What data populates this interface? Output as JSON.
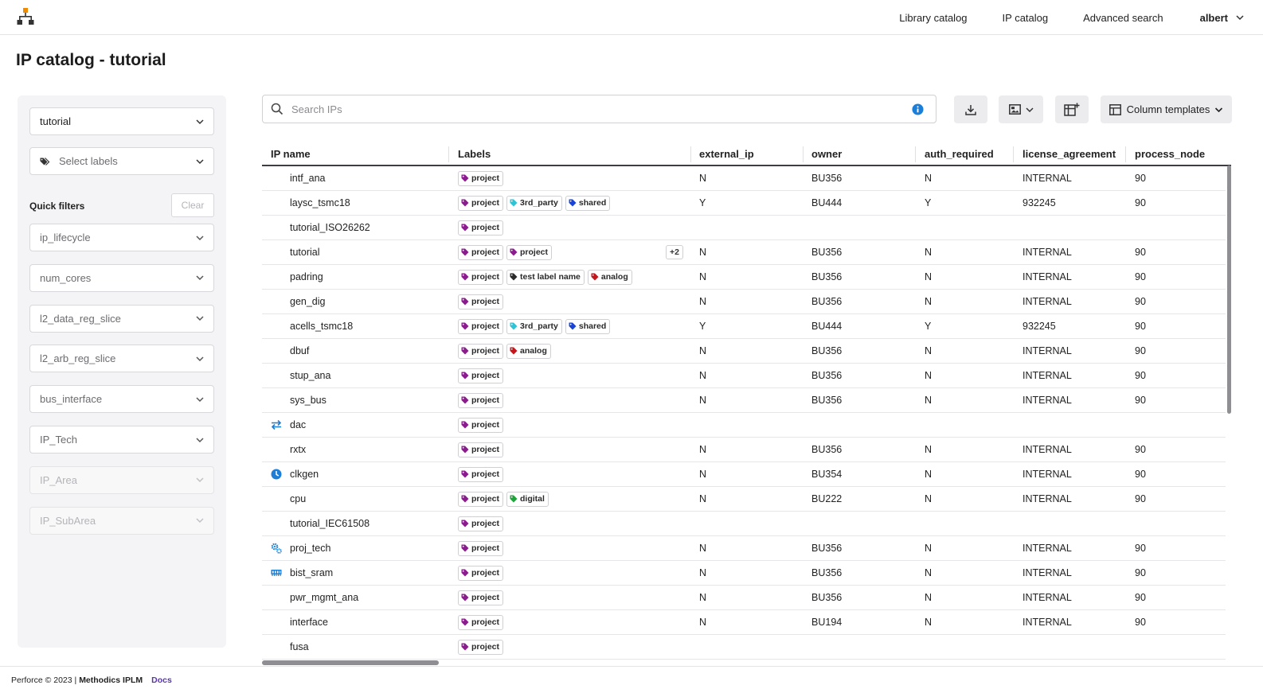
{
  "nav": {
    "logo_icon": "hierarchy-logo-icon",
    "links": [
      "Library catalog",
      "IP catalog",
      "Advanced search"
    ],
    "user": "albert"
  },
  "page": {
    "title": "IP catalog - tutorial"
  },
  "sidebar": {
    "project_select": "tutorial",
    "labels_placeholder": "Select labels",
    "quick_filters_title": "Quick filters",
    "clear_label": "Clear",
    "filters": [
      {
        "label": "ip_lifecycle",
        "disabled": false
      },
      {
        "label": "num_cores",
        "disabled": false
      },
      {
        "label": "l2_data_reg_slice",
        "disabled": false
      },
      {
        "label": "l2_arb_reg_slice",
        "disabled": false
      },
      {
        "label": "bus_interface",
        "disabled": false
      },
      {
        "label": "IP_Tech",
        "disabled": false
      },
      {
        "label": "IP_Area",
        "disabled": true
      },
      {
        "label": "IP_SubArea",
        "disabled": true
      }
    ]
  },
  "toolbar": {
    "search_placeholder": "Search IPs",
    "column_templates_label": "Column templates"
  },
  "table": {
    "columns": [
      "IP name",
      "Labels",
      "external_ip",
      "owner",
      "auth_required",
      "license_agreement",
      "process_node"
    ],
    "rows": [
      {
        "name": "intf_ana",
        "labels": [
          "project"
        ],
        "external_ip": "N",
        "owner": "BU356",
        "auth_required": "N",
        "license_agreement": "INTERNAL",
        "process_node": "90"
      },
      {
        "name": "laysc_tsmc18",
        "labels": [
          "project",
          "3rd_party",
          "shared"
        ],
        "external_ip": "Y",
        "owner": "BU444",
        "auth_required": "Y",
        "license_agreement": "932245",
        "process_node": "90"
      },
      {
        "name": "tutorial_ISO26262",
        "labels": [
          "project"
        ]
      },
      {
        "name": "tutorial",
        "labels": [
          "project",
          "project"
        ],
        "more": "+2",
        "external_ip": "N",
        "owner": "BU356",
        "auth_required": "N",
        "license_agreement": "INTERNAL",
        "process_node": "90"
      },
      {
        "name": "padring",
        "labels": [
          "project",
          "test label name",
          "analog"
        ],
        "external_ip": "N",
        "owner": "BU356",
        "auth_required": "N",
        "license_agreement": "INTERNAL",
        "process_node": "90"
      },
      {
        "name": "gen_dig",
        "labels": [
          "project"
        ],
        "external_ip": "N",
        "owner": "BU356",
        "auth_required": "N",
        "license_agreement": "INTERNAL",
        "process_node": "90"
      },
      {
        "name": "acells_tsmc18",
        "labels": [
          "project",
          "3rd_party",
          "shared"
        ],
        "external_ip": "Y",
        "owner": "BU444",
        "auth_required": "Y",
        "license_agreement": "932245",
        "process_node": "90"
      },
      {
        "name": "dbuf",
        "labels": [
          "project",
          "analog"
        ],
        "external_ip": "N",
        "owner": "BU356",
        "auth_required": "N",
        "license_agreement": "INTERNAL",
        "process_node": "90"
      },
      {
        "name": "stup_ana",
        "labels": [
          "project"
        ],
        "external_ip": "N",
        "owner": "BU356",
        "auth_required": "N",
        "license_agreement": "INTERNAL",
        "process_node": "90"
      },
      {
        "name": "sys_bus",
        "labels": [
          "project"
        ],
        "external_ip": "N",
        "owner": "BU356",
        "auth_required": "N",
        "license_agreement": "INTERNAL",
        "process_node": "90"
      },
      {
        "name": "dac",
        "icon": "swap-arrows-icon",
        "labels": [
          "project"
        ]
      },
      {
        "name": "rxtx",
        "labels": [
          "project"
        ],
        "external_ip": "N",
        "owner": "BU356",
        "auth_required": "N",
        "license_agreement": "INTERNAL",
        "process_node": "90"
      },
      {
        "name": "clkgen",
        "icon": "clock-icon",
        "labels": [
          "project"
        ],
        "external_ip": "N",
        "owner": "BU354",
        "auth_required": "N",
        "license_agreement": "INTERNAL",
        "process_node": "90"
      },
      {
        "name": "cpu",
        "labels": [
          "project",
          "digital"
        ],
        "external_ip": "N",
        "owner": "BU222",
        "auth_required": "N",
        "license_agreement": "INTERNAL",
        "process_node": "90"
      },
      {
        "name": "tutorial_IEC61508",
        "labels": [
          "project"
        ]
      },
      {
        "name": "proj_tech",
        "icon": "gears-icon",
        "labels": [
          "project"
        ],
        "external_ip": "N",
        "owner": "BU356",
        "auth_required": "N",
        "license_agreement": "INTERNAL",
        "process_node": "90"
      },
      {
        "name": "bist_sram",
        "icon": "memory-icon",
        "labels": [
          "project"
        ],
        "external_ip": "N",
        "owner": "BU356",
        "auth_required": "N",
        "license_agreement": "INTERNAL",
        "process_node": "90"
      },
      {
        "name": "pwr_mgmt_ana",
        "labels": [
          "project"
        ],
        "external_ip": "N",
        "owner": "BU356",
        "auth_required": "N",
        "license_agreement": "INTERNAL",
        "process_node": "90"
      },
      {
        "name": "interface",
        "labels": [
          "project"
        ],
        "external_ip": "N",
        "owner": "BU194",
        "auth_required": "N",
        "license_agreement": "INTERNAL",
        "process_node": "90"
      },
      {
        "name": "fusa",
        "labels": [
          "project"
        ]
      }
    ]
  },
  "label_colors": {
    "project": "#8b1c8e",
    "3rd_party": "#2ec4d6",
    "shared": "#1a44d6",
    "test label name": "#2a2a2a",
    "analog": "#c4161c",
    "digital": "#1ea33a"
  },
  "colors": {
    "accent": "#1c7ed6",
    "logo": "#f08a00"
  },
  "footer": {
    "copyright": "Perforce © 2023 |",
    "product": "Methodics IPLM",
    "docs": "Docs"
  }
}
